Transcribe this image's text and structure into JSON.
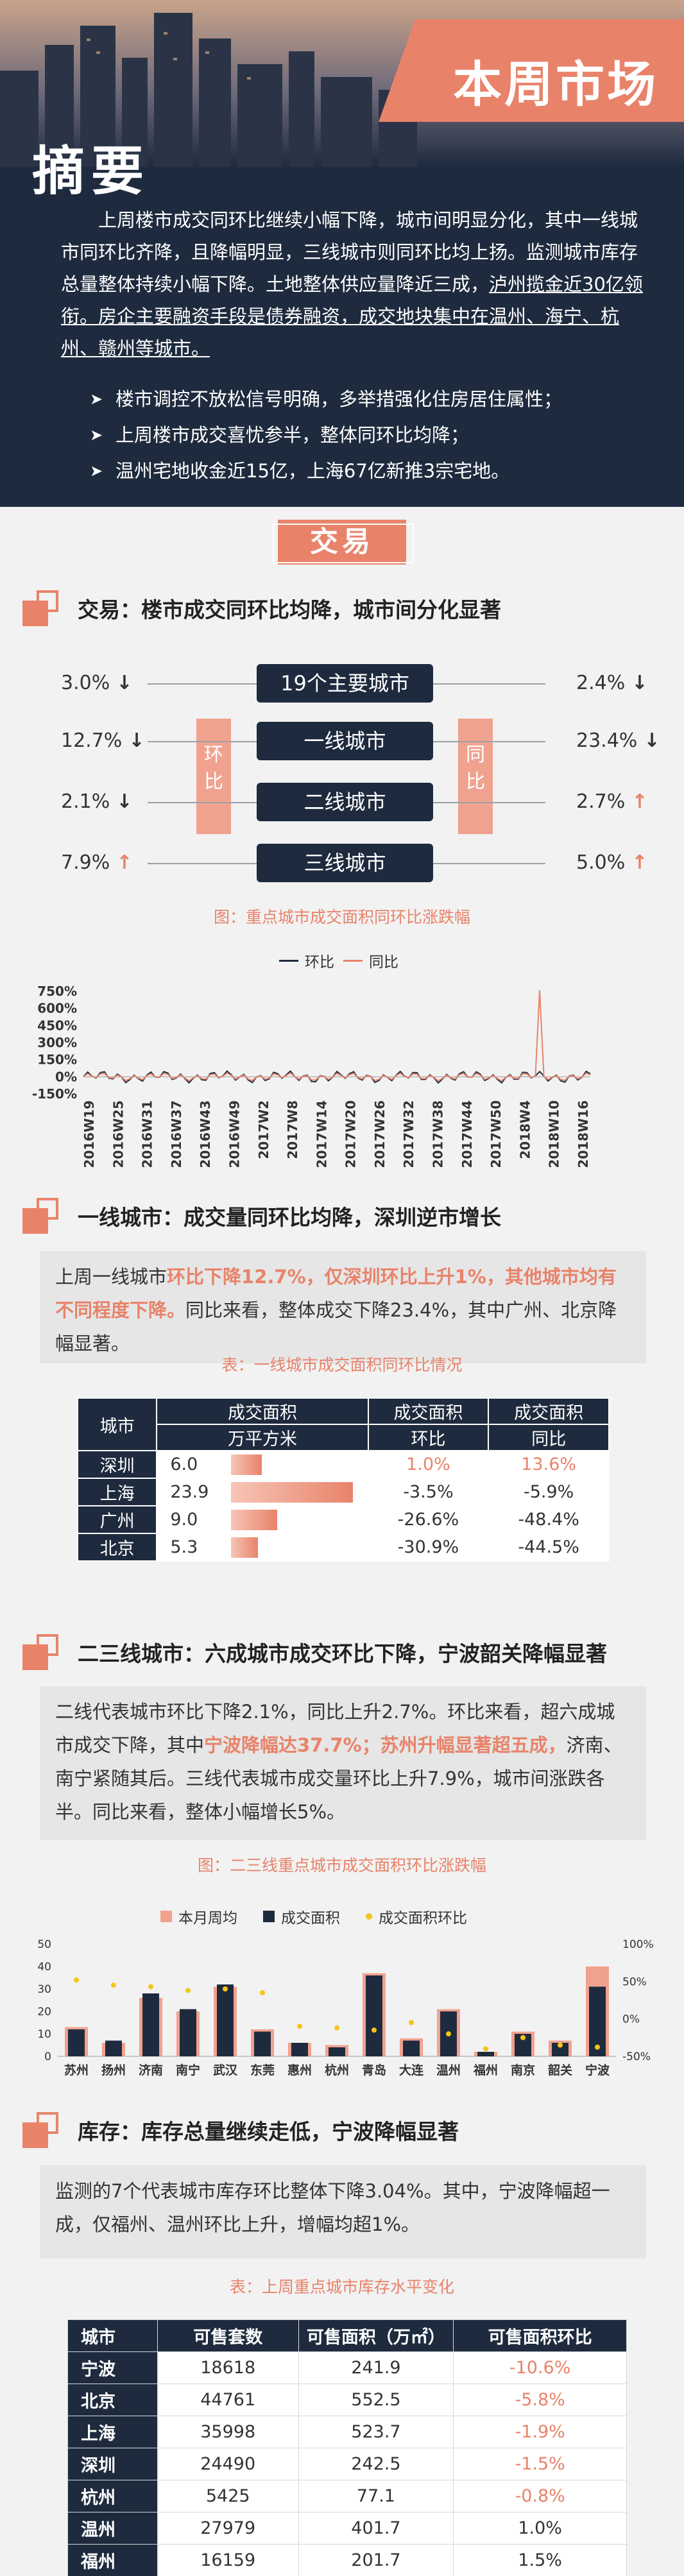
{
  "header": {
    "ribbon": "本周市场",
    "abstract_title": "摘要"
  },
  "abstract": {
    "p1": "上周楼市成交同环比继续小幅下降，城市间明显分化，其中一线城市同环比齐降，且降幅明显，三线城市则同环比均上扬。监测城市库存总量整体持续小幅下降。土地整体供应量降近三成，",
    "p1_u": "泸州揽金近30亿领衔。房企主要融资手段是债券融资，成交地块集中在温州、海宁、杭州、赣州等城市。",
    "bullets": [
      "楼市调控不放松信号明确，多举措强化住房居住属性；",
      "上周楼市成交喜忧参半，整体同环比均降；",
      "温州宅地收金近15亿，上海67亿新推3宗宅地。"
    ]
  },
  "section_badge": "交易",
  "trade": {
    "heading": "交易：楼市成交同环比均降，城市间分化显著",
    "rows": [
      {
        "label": "19个主要城市",
        "left": "3.0%",
        "ld": "↓",
        "right": "2.4%",
        "rd": "↓"
      },
      {
        "label": "一线城市",
        "left": "12.7%",
        "ld": "↓",
        "right": "23.4%",
        "rd": "↓"
      },
      {
        "label": "二线城市",
        "left": "2.1%",
        "ld": "↓",
        "right": "2.7%",
        "rd": "↑"
      },
      {
        "label": "三线城市",
        "left": "7.9%",
        "ld": "↑",
        "right": "5.0%",
        "rd": "↑"
      }
    ],
    "tag_left": "环比",
    "tag_right": "同比",
    "caption": "图：重点城市成交面积同环比涨跌幅"
  },
  "line_chart": {
    "legend_a": "环比",
    "legend_b": "同比",
    "yticks": [
      "750%",
      "600%",
      "450%",
      "300%",
      "150%",
      "0%",
      "-150%"
    ],
    "xticks": [
      "2016W19",
      "2016W25",
      "2016W31",
      "2016W37",
      "2016W43",
      "2016W49",
      "2017W2",
      "2017W8",
      "2017W14",
      "2017W20",
      "2017W26",
      "2017W32",
      "2017W38",
      "2017W44",
      "2017W50",
      "2018W4",
      "2018W10",
      "2018W16"
    ]
  },
  "tier1": {
    "heading": "一线城市：成交量同环比均降，深圳逆市增长",
    "text_a": "上周一线城市",
    "text_hl": "环比下降12.7%，仅深圳环比上升1%，其他城市均有不同程度下降。",
    "text_b": "同比来看，整体成交下降23.4%，其中广州、北京降幅显著。",
    "caption": "表：一线城市成交面积同环比情况",
    "th": {
      "city": "城市",
      "area": "成交面积",
      "unit": "万平方米",
      "mom_a": "成交面积",
      "mom_b": "环比",
      "yoy_a": "成交面积",
      "yoy_b": "同比"
    },
    "rows": [
      {
        "city": "深圳",
        "area": "6.0",
        "mom": "1.0%",
        "yoy": "13.6%",
        "bar": 0.25,
        "pos": true
      },
      {
        "city": "上海",
        "area": "23.9",
        "mom": "-3.5%",
        "yoy": "-5.9%",
        "bar": 1.0,
        "pos": false
      },
      {
        "city": "广州",
        "area": "9.0",
        "mom": "-26.6%",
        "yoy": "-48.4%",
        "bar": 0.38,
        "pos": false
      },
      {
        "city": "北京",
        "area": "5.3",
        "mom": "-30.9%",
        "yoy": "-44.5%",
        "bar": 0.22,
        "pos": false
      }
    ]
  },
  "tier23": {
    "heading": "二三线城市：六成城市成交环比下降，宁波韶关降幅显著",
    "text_a": "二线代表城市环比下降2.1%，同比上升2.7%。环比来看，超六成城市成交下降，其中",
    "text_hl": "宁波降幅达37.7%；苏州升幅显著超五成，",
    "text_b": "济南、南宁紧随其后。三线代表城市成交量环比上升7.9%，城市间涨跌各半。同比来看，整体小幅增长5%。",
    "caption": "图：二三线重点城市成交面积环比涨跌幅",
    "legend": [
      "本月周均",
      "成交面积",
      "成交面积环比"
    ]
  },
  "chart_data": {
    "type": "bar",
    "categories": [
      "苏州",
      "扬州",
      "济南",
      "南宁",
      "武汉",
      "东莞",
      "惠州",
      "杭州",
      "青岛",
      "大连",
      "温州",
      "福州",
      "南京",
      "韶关",
      "宁波"
    ],
    "series": [
      {
        "name": "本月周均",
        "values": [
          13,
          6,
          26,
          20,
          31,
          12,
          6,
          5,
          37,
          8,
          21,
          2,
          11,
          7,
          40
        ]
      },
      {
        "name": "成交面积",
        "values": [
          12,
          7,
          28,
          21,
          32,
          11,
          6,
          4,
          36,
          7,
          20,
          2,
          10,
          6,
          31
        ]
      },
      {
        "name": "成交面积环比",
        "values": [
          52,
          45,
          43,
          38,
          40,
          35,
          -10,
          -12,
          -15,
          -5,
          -20,
          -40,
          -25,
          -35,
          -37.7
        ]
      }
    ],
    "ylim": [
      0,
      50
    ],
    "y2lim": [
      -50,
      100
    ],
    "yticks": [
      "50",
      "40",
      "30",
      "20",
      "10",
      "0"
    ],
    "y2ticks": [
      "100%",
      "50%",
      "0%",
      "-50%"
    ]
  },
  "inventory": {
    "heading": "库存：库存总量继续走低，宁波降幅显著",
    "text": "监测的7个代表城市库存环比整体下降3.04%。其中，宁波降幅超一成，仅福州、温州环比上升，增幅均超1%。",
    "caption": "表：上周重点城市库存水平变化",
    "th": [
      "城市",
      "可售套数",
      "可售面积（万㎡）",
      "可售面积环比"
    ],
    "rows": [
      {
        "city": "宁波",
        "units": "18618",
        "area": "241.9",
        "mom": "-10.6%",
        "neg": true
      },
      {
        "city": "北京",
        "units": "44761",
        "area": "552.5",
        "mom": "-5.8%",
        "neg": true
      },
      {
        "city": "上海",
        "units": "35998",
        "area": "523.7",
        "mom": "-1.9%",
        "neg": true
      },
      {
        "city": "深圳",
        "units": "24490",
        "area": "242.5",
        "mom": "-1.5%",
        "neg": true
      },
      {
        "city": "杭州",
        "units": "5425",
        "area": "77.1",
        "mom": "-0.8%",
        "neg": true
      },
      {
        "city": "温州",
        "units": "27979",
        "area": "401.7",
        "mom": "1.0%",
        "neg": false
      },
      {
        "city": "福州",
        "units": "16159",
        "area": "201.7",
        "mom": "1.5%",
        "neg": false
      }
    ]
  }
}
